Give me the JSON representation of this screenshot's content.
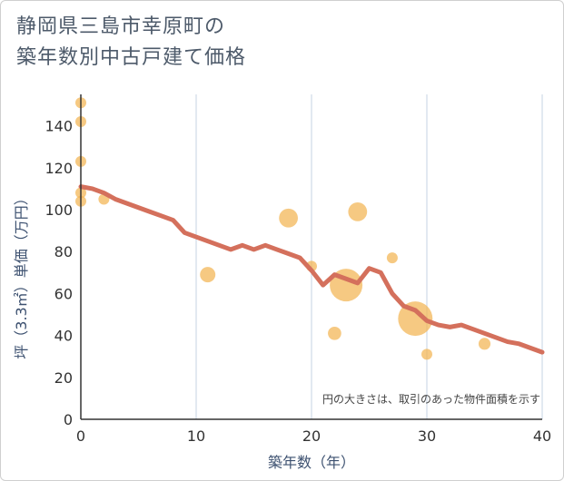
{
  "title": {
    "line1": "静岡県三島市幸原町の",
    "line2": "築年数別中古戸建て価格"
  },
  "note": "円の大きさは、取引のあった物件面積を示す",
  "colors": {
    "line": "#d4705c",
    "bubble": "#f2b452",
    "grid": "#c5d3e3",
    "axis": "#333333",
    "title": "#4d5a6a",
    "axis_label": "#3d5170"
  },
  "chart_data": {
    "type": "scatter",
    "title": "静岡県三島市幸原町の築年数別中古戸建て価格",
    "xlabel": "築年数（年）",
    "ylabel": "坪（3.3㎡）単価（万円）",
    "xlim": [
      0,
      40
    ],
    "ylim": [
      0,
      155
    ],
    "xticks": [
      0,
      10,
      20,
      30,
      40
    ],
    "yticks": [
      0,
      20,
      40,
      60,
      80,
      100,
      120,
      140
    ],
    "grid": "vertical",
    "bubbles": [
      {
        "x": 0,
        "y": 151,
        "size": 1
      },
      {
        "x": 0,
        "y": 142,
        "size": 1
      },
      {
        "x": 0,
        "y": 123,
        "size": 1
      },
      {
        "x": 0,
        "y": 108,
        "size": 1
      },
      {
        "x": 0,
        "y": 104,
        "size": 1
      },
      {
        "x": 2,
        "y": 105,
        "size": 1
      },
      {
        "x": 11,
        "y": 69,
        "size": 2
      },
      {
        "x": 18,
        "y": 96,
        "size": 3
      },
      {
        "x": 20,
        "y": 73,
        "size": 1
      },
      {
        "x": 22,
        "y": 41,
        "size": 1.5
      },
      {
        "x": 23,
        "y": 64,
        "size": 9
      },
      {
        "x": 24,
        "y": 99,
        "size": 3
      },
      {
        "x": 27,
        "y": 77,
        "size": 1
      },
      {
        "x": 29,
        "y": 48,
        "size": 10
      },
      {
        "x": 30,
        "y": 31,
        "size": 1
      },
      {
        "x": 35,
        "y": 36,
        "size": 1.2
      }
    ],
    "trend_line": {
      "x": [
        0,
        1,
        2,
        3,
        4,
        5,
        6,
        7,
        8,
        9,
        10,
        11,
        12,
        13,
        14,
        15,
        16,
        17,
        18,
        19,
        20,
        21,
        22,
        23,
        24,
        25,
        26,
        27,
        28,
        29,
        30,
        31,
        32,
        33,
        34,
        35,
        36,
        37,
        38,
        39,
        40
      ],
      "y": [
        111,
        110,
        108,
        105,
        103,
        101,
        99,
        97,
        95,
        89,
        87,
        85,
        83,
        81,
        83,
        81,
        83,
        81,
        79,
        77,
        71,
        64,
        69,
        67,
        65,
        72,
        70,
        60,
        54,
        52,
        47,
        45,
        44,
        45,
        43,
        41,
        39,
        37,
        36,
        34,
        32
      ]
    }
  }
}
